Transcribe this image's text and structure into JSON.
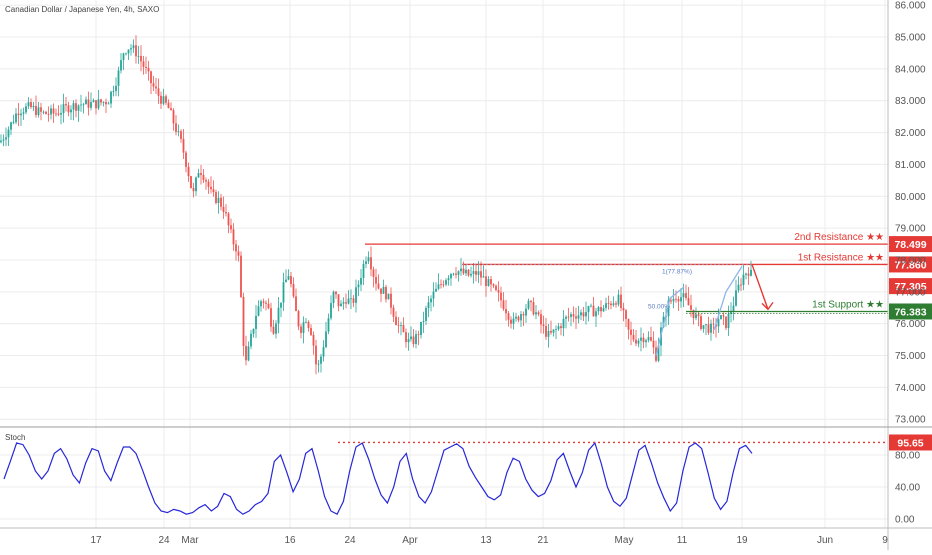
{
  "chart_title": "Canadian Dollar / Japanese Yen, 4h, SAXO",
  "chart_data": [
    {
      "type": "candlestick",
      "title": "Canadian Dollar / Japanese Yen, 4h, SAXO",
      "ylim": [
        72.8,
        86.1
      ],
      "y_ticks": [
        "73.000",
        "74.000",
        "75.000",
        "76.000",
        "77.000",
        "78.000",
        "79.000",
        "80.000",
        "81.000",
        "82.000",
        "83.000",
        "84.000",
        "85.000",
        "86.000"
      ],
      "x_ticks": [
        "17",
        "24",
        "Mar",
        "16",
        "24",
        "Apr",
        "13",
        "21",
        "May",
        "11",
        "19",
        "Jun",
        "9"
      ],
      "price_path": [
        [
          0,
          81.7
        ],
        [
          10,
          82.2
        ],
        [
          18,
          82.7
        ],
        [
          30,
          82.8
        ],
        [
          42,
          82.6
        ],
        [
          55,
          82.6
        ],
        [
          68,
          82.8
        ],
        [
          82,
          82.9
        ],
        [
          95,
          82.9
        ],
        [
          108,
          83.0
        ],
        [
          118,
          83.8
        ],
        [
          124,
          84.6
        ],
        [
          130,
          84.7
        ],
        [
          137,
          84.5
        ],
        [
          145,
          84.0
        ],
        [
          152,
          83.5
        ],
        [
          160,
          83.1
        ],
        [
          168,
          82.8
        ],
        [
          175,
          82.2
        ],
        [
          182,
          81.6
        ],
        [
          188,
          80.8
        ],
        [
          193,
          80.0
        ],
        [
          199,
          80.9
        ],
        [
          205,
          80.6
        ],
        [
          212,
          80.0
        ],
        [
          218,
          79.9
        ],
        [
          224,
          79.6
        ],
        [
          229,
          79.0
        ],
        [
          234,
          78.5
        ],
        [
          238,
          78.3
        ],
        [
          241,
          76.8
        ],
        [
          245,
          74.6
        ],
        [
          250,
          75.4
        ],
        [
          256,
          76.3
        ],
        [
          262,
          76.8
        ],
        [
          268,
          76.5
        ],
        [
          273,
          75.8
        ],
        [
          279,
          76.5
        ],
        [
          284,
          77.2
        ],
        [
          289,
          77.6
        ],
        [
          294,
          76.6
        ],
        [
          300,
          75.8
        ],
        [
          306,
          76.2
        ],
        [
          312,
          75.7
        ],
        [
          317,
          74.5
        ],
        [
          322,
          75.1
        ],
        [
          328,
          76.1
        ],
        [
          334,
          77.0
        ],
        [
          340,
          76.5
        ],
        [
          346,
          76.8
        ],
        [
          352,
          76.6
        ],
        [
          358,
          77.2
        ],
        [
          364,
          77.9
        ],
        [
          368,
          78.3
        ],
        [
          373,
          77.6
        ],
        [
          379,
          77.1
        ],
        [
          385,
          77.0
        ],
        [
          391,
          76.6
        ],
        [
          397,
          76.0
        ],
        [
          403,
          75.7
        ],
        [
          409,
          75.4
        ],
        [
          415,
          75.5
        ],
        [
          421,
          75.9
        ],
        [
          427,
          76.5
        ],
        [
          433,
          76.9
        ],
        [
          440,
          77.2
        ],
        [
          447,
          77.5
        ],
        [
          454,
          77.7
        ],
        [
          462,
          77.6
        ],
        [
          470,
          77.5
        ],
        [
          477,
          77.6
        ],
        [
          484,
          77.4
        ],
        [
          492,
          77.1
        ],
        [
          500,
          76.8
        ],
        [
          507,
          76.4
        ],
        [
          513,
          76.0
        ],
        [
          520,
          76.3
        ],
        [
          528,
          76.6
        ],
        [
          535,
          76.4
        ],
        [
          542,
          75.9
        ],
        [
          549,
          75.6
        ],
        [
          556,
          75.8
        ],
        [
          564,
          76.1
        ],
        [
          572,
          76.3
        ],
        [
          580,
          76.3
        ],
        [
          588,
          76.4
        ],
        [
          596,
          76.4
        ],
        [
          604,
          76.5
        ],
        [
          612,
          76.7
        ],
        [
          618,
          76.8
        ],
        [
          624,
          76.2
        ],
        [
          630,
          75.6
        ],
        [
          637,
          75.5
        ],
        [
          644,
          75.6
        ],
        [
          650,
          75.5
        ],
        [
          656,
          75.0
        ],
        [
          661,
          75.8
        ],
        [
          668,
          76.6
        ],
        [
          676,
          76.9
        ],
        [
          684,
          76.8
        ],
        [
          692,
          76.4
        ],
        [
          700,
          76.0
        ],
        [
          707,
          75.9
        ],
        [
          713,
          75.8
        ],
        [
          719,
          76.2
        ],
        [
          726,
          76.0
        ],
        [
          732,
          76.5
        ],
        [
          738,
          77.1
        ],
        [
          743,
          77.5
        ],
        [
          748,
          77.7
        ],
        [
          752,
          77.5
        ]
      ],
      "annotations": [
        {
          "label": "2nd Resistance ★★",
          "value": "78.499",
          "y": 78.499,
          "color": "#e53935"
        },
        {
          "label": "1st Resistance ★★",
          "value": "77.860",
          "y": 77.86,
          "color": "#e53935"
        },
        {
          "label": "",
          "value": "77.305",
          "y": 77.305,
          "color": "#e53935"
        },
        {
          "label": "1st Support ★★",
          "value": "76.383",
          "y": 76.383,
          "color": "#2e7d32"
        }
      ],
      "fib_labels": [
        "50.00%",
        "1(77.87%)"
      ]
    },
    {
      "type": "line",
      "title": "Stoch",
      "ylim": [
        0,
        100
      ],
      "y_ticks": [
        "0.00",
        "40.00",
        "80.00"
      ],
      "marker_value": "95.65",
      "line_color": "#2727d9",
      "values": [
        50,
        72,
        95,
        93,
        80,
        60,
        50,
        60,
        82,
        88,
        75,
        55,
        45,
        70,
        88,
        85,
        60,
        48,
        70,
        90,
        90,
        82,
        62,
        40,
        20,
        10,
        8,
        12,
        10,
        6,
        8,
        14,
        18,
        10,
        16,
        32,
        28,
        12,
        6,
        10,
        18,
        22,
        32,
        72,
        80,
        58,
        34,
        50,
        82,
        88,
        60,
        28,
        10,
        6,
        22,
        60,
        90,
        95,
        75,
        50,
        30,
        20,
        40,
        72,
        82,
        50,
        28,
        20,
        34,
        60,
        86,
        90,
        94,
        88,
        66,
        52,
        40,
        28,
        24,
        30,
        58,
        76,
        72,
        50,
        36,
        28,
        32,
        48,
        74,
        82,
        60,
        40,
        58,
        86,
        95,
        70,
        40,
        22,
        16,
        26,
        56,
        86,
        92,
        70,
        45,
        26,
        10,
        20,
        60,
        90,
        95,
        88,
        58,
        26,
        12,
        22,
        58,
        88,
        92,
        82
      ]
    }
  ],
  "colors": {
    "up": "#26a69a",
    "down": "#ef5350",
    "resistance": "#e53935",
    "support": "#2e7d32",
    "stoch": "#2727d9",
    "grid": "#ececec",
    "axis_text": "#555555"
  }
}
